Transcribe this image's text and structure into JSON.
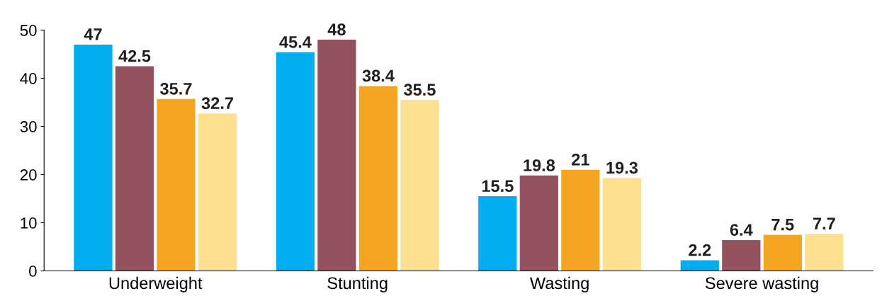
{
  "chart_data": {
    "type": "bar",
    "categories": [
      "Underweight",
      "Stunting",
      "Wasting",
      "Severe wasting"
    ],
    "series": [
      {
        "color": "#00aeef",
        "values": [
          47,
          45.4,
          15.5,
          2.2
        ]
      },
      {
        "color": "#94525e",
        "values": [
          42.5,
          48,
          19.8,
          6.4
        ]
      },
      {
        "color": "#f4a522",
        "values": [
          35.7,
          38.4,
          21,
          7.5
        ]
      },
      {
        "color": "#fde08f",
        "values": [
          32.7,
          35.5,
          19.3,
          7.7
        ]
      }
    ],
    "ylim": [
      0,
      50
    ],
    "yticks": [
      0,
      10,
      20,
      30,
      40,
      50
    ],
    "data_labels": true,
    "grid": false,
    "legend": false
  }
}
